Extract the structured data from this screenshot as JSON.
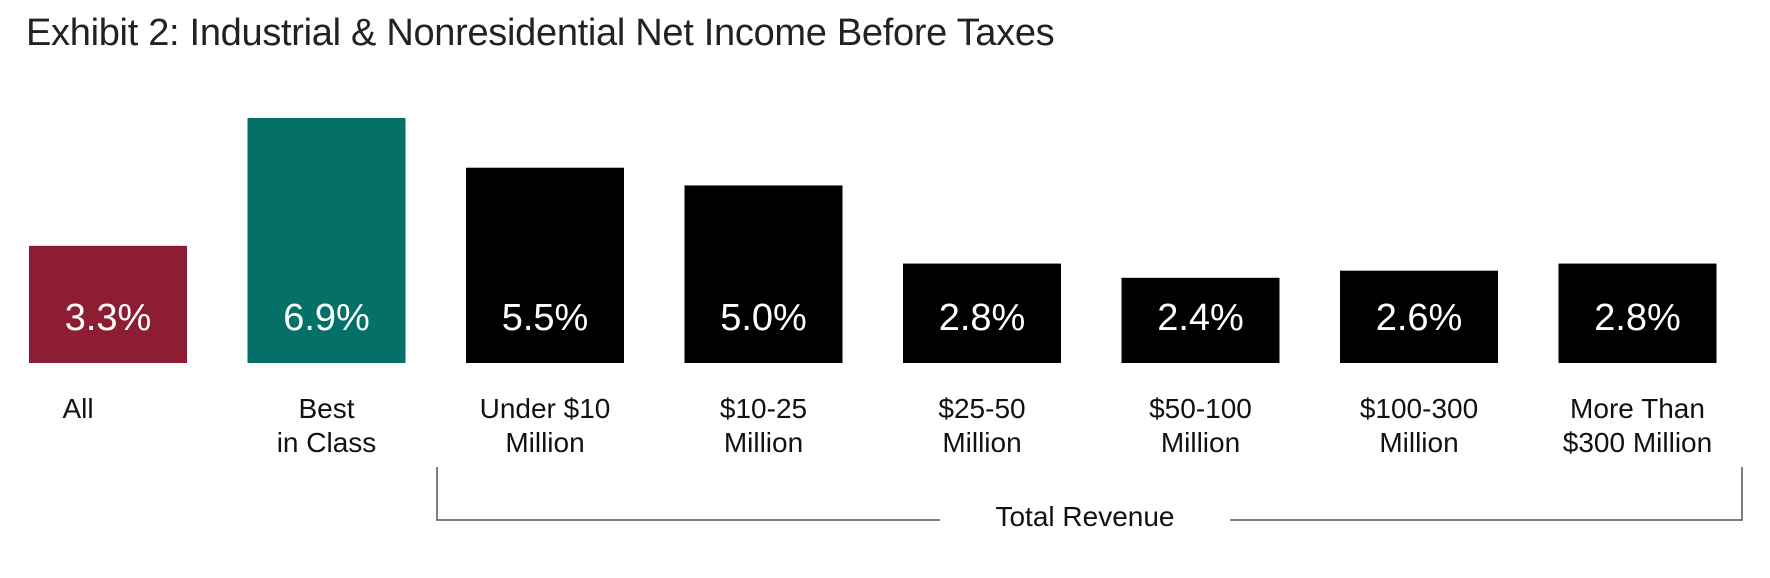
{
  "chart_data": {
    "type": "bar",
    "title": "Exhibit 2: Industrial & Nonresidential Net Income Before Taxes",
    "categories": [
      [
        "All"
      ],
      [
        "Best",
        "in Class"
      ],
      [
        "Under $10",
        "Million"
      ],
      [
        "$10-25",
        "Million"
      ],
      [
        "$25-50",
        "Million"
      ],
      [
        "$50-100",
        "Million"
      ],
      [
        "$100-300",
        "Million"
      ],
      [
        "More Than",
        "$300 Million"
      ]
    ],
    "values": [
      3.3,
      6.9,
      5.5,
      5.0,
      2.8,
      2.4,
      2.6,
      2.8
    ],
    "value_labels": [
      "3.3%",
      "6.9%",
      "5.5%",
      "5.0%",
      "2.8%",
      "2.4%",
      "2.6%",
      "2.8%"
    ],
    "bar_colors": [
      "#8c1d32",
      "#047068",
      "#000000",
      "#000000",
      "#000000",
      "#000000",
      "#000000",
      "#000000"
    ],
    "group_label": "Total Revenue",
    "ylim": [
      0,
      6.9
    ],
    "grid": false,
    "legend": "none"
  }
}
